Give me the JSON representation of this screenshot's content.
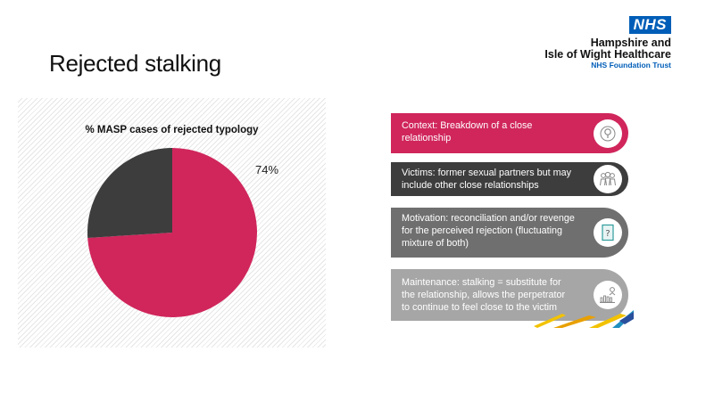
{
  "slide": {
    "title": "Rejected stalking"
  },
  "logo": {
    "badge": "NHS",
    "org_line1": "Hampshire and",
    "org_line2": "Isle of Wight Healthcare",
    "org_line3": "NHS Foundation Trust",
    "brand_color": "#005eb8"
  },
  "chart": {
    "title": "% MASP cases of rejected typology",
    "label": "74%"
  },
  "chart_data": {
    "type": "pie",
    "title": "% MASP cases of rejected typology",
    "slices": [
      {
        "value": 74,
        "color": "#d0265c"
      },
      {
        "value": 26,
        "color": "#3d3d3d"
      }
    ],
    "data_labels": [
      "74%"
    ]
  },
  "info": {
    "items": [
      {
        "text": "Context: Breakdown of a close relationship",
        "icon": "location-pin-icon",
        "color": "#d0265c"
      },
      {
        "text": "Victims: former sexual partners but may include other close relationships",
        "icon": "people-group-icon",
        "color": "#3d3d3d"
      },
      {
        "text": "Motivation: reconciliation and/or revenge for the perceived rejection (fluctuating mixture of both)",
        "icon": "question-card-icon",
        "color": "#6f6f6f"
      },
      {
        "text": "Maintenance: stalking = substitute for  the  relationship, allows the perpetrator to continue to feel close to the victim",
        "icon": "person-chart-icon",
        "color": "#a6a6a6"
      }
    ]
  }
}
